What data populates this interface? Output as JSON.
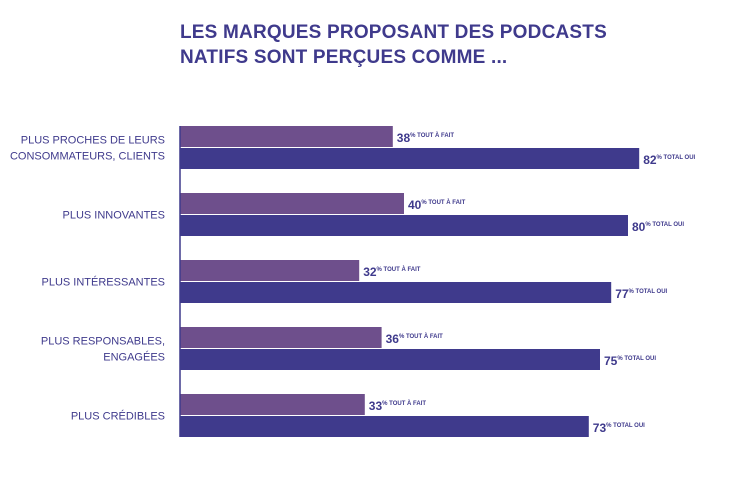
{
  "title_lines": [
    "LES MARQUES PROPOSANT DES PODCASTS",
    "NATIFS SONT PERÇUES COMME ..."
  ],
  "colors": {
    "tout_a_fait": "#6e4f8c",
    "total_oui": "#3f3a8c",
    "text": "#3f3a8c",
    "axis": "#3f3a8c"
  },
  "chart_data": {
    "type": "bar",
    "orientation": "horizontal",
    "title": "LES MARQUES PROPOSANT DES PODCASTS NATIFS SONT PERÇUES COMME ...",
    "categories": [
      [
        "PLUS PROCHES DE LEURS",
        "CONSOMMATEURS, CLIENTS"
      ],
      [
        "PLUS INNOVANTES"
      ],
      [
        "PLUS INTÉRESSANTES"
      ],
      [
        "PLUS RESPONSABLES,",
        "ENGAGÉES"
      ],
      [
        "PLUS CRÉDIBLES"
      ]
    ],
    "series": [
      {
        "name": "TOUT À FAIT",
        "values": [
          38,
          40,
          32,
          36,
          33
        ]
      },
      {
        "name": "TOTAL OUI",
        "values": [
          82,
          80,
          77,
          75,
          73
        ]
      }
    ],
    "value_suffix": "%",
    "xlim": [
      0,
      100
    ],
    "grid": false,
    "legend": "none"
  }
}
